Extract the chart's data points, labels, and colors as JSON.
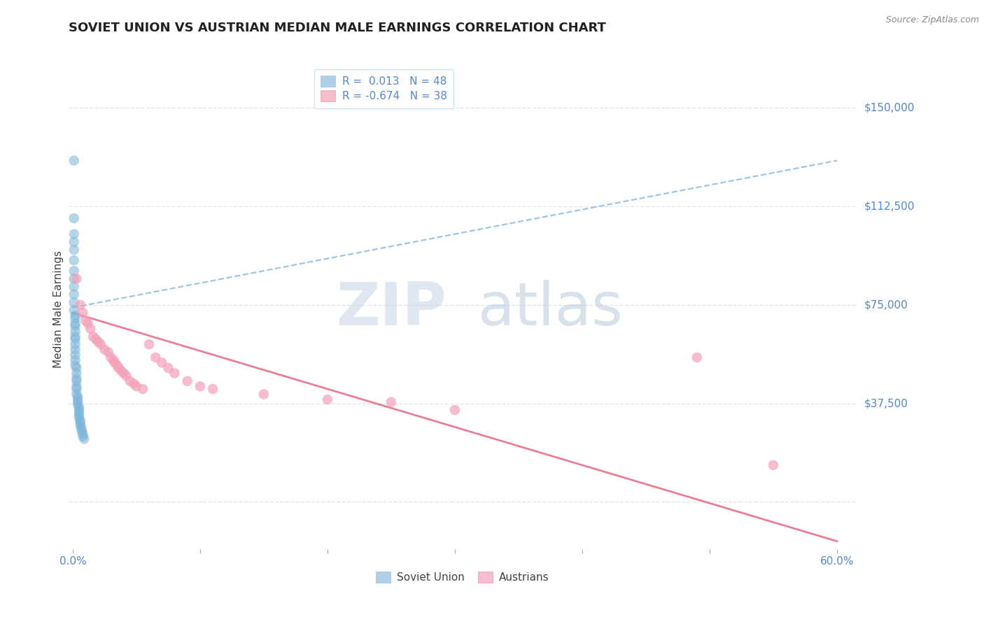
{
  "title": "SOVIET UNION VS AUSTRIAN MEDIAN MALE EARNINGS CORRELATION CHART",
  "source": "Source: ZipAtlas.com",
  "ylabel": "Median Male Earnings",
  "xlim": [
    -0.003,
    0.615
  ],
  "ylim": [
    -18000,
    165000
  ],
  "ytick_vals": [
    0,
    37500,
    75000,
    112500,
    150000
  ],
  "ytick_labels": [
    "",
    "$37,500",
    "$75,000",
    "$112,500",
    "$150,000"
  ],
  "xtick_vals": [
    0.0,
    0.1,
    0.2,
    0.3,
    0.4,
    0.5,
    0.6
  ],
  "xtick_labels": [
    "0.0%",
    "",
    "",
    "",
    "",
    "",
    "60.0%"
  ],
  "watermark_text": "ZIPatlas",
  "soviet_color": "#7ab3d8",
  "austrian_color": "#f4a0b8",
  "soviet_trend_color": "#90bbdd",
  "austrian_trend_color": "#e8708a",
  "grid_color": "#dde8f0",
  "bg_color": "#ffffff",
  "label_color": "#5588cc",
  "title_color": "#222222",
  "source_color": "#888888",
  "legend_r_label_soviet": "R =  0.013   N = 48",
  "legend_r_label_austrian": "R = -0.674   N = 38",
  "legend_name_soviet": "Soviet Union",
  "legend_name_austrian": "Austrians",
  "soviet_union_x": [
    0.001,
    0.001,
    0.001,
    0.001,
    0.001,
    0.001,
    0.001,
    0.001,
    0.001,
    0.001,
    0.001,
    0.001,
    0.002,
    0.002,
    0.002,
    0.002,
    0.002,
    0.002,
    0.002,
    0.002,
    0.002,
    0.002,
    0.002,
    0.002,
    0.003,
    0.003,
    0.003,
    0.003,
    0.003,
    0.003,
    0.003,
    0.004,
    0.004,
    0.004,
    0.004,
    0.005,
    0.005,
    0.005,
    0.005,
    0.005,
    0.006,
    0.006,
    0.006,
    0.007,
    0.007,
    0.008,
    0.008,
    0.009
  ],
  "soviet_union_y": [
    130000,
    108000,
    102000,
    99000,
    96000,
    92000,
    88000,
    85000,
    82000,
    79000,
    76000,
    73000,
    71000,
    70000,
    68000,
    67000,
    65000,
    63000,
    62000,
    60000,
    58000,
    56000,
    54000,
    52000,
    51000,
    49000,
    47000,
    46000,
    44000,
    43000,
    41000,
    40000,
    39000,
    38000,
    37000,
    36000,
    35000,
    34000,
    33000,
    32000,
    31000,
    30000,
    29000,
    28000,
    27000,
    26000,
    25000,
    24000
  ],
  "austrian_x": [
    0.003,
    0.006,
    0.008,
    0.01,
    0.012,
    0.014,
    0.016,
    0.018,
    0.02,
    0.022,
    0.025,
    0.028,
    0.03,
    0.032,
    0.033,
    0.035,
    0.036,
    0.038,
    0.04,
    0.042,
    0.045,
    0.048,
    0.05,
    0.055,
    0.06,
    0.065,
    0.07,
    0.075,
    0.08,
    0.09,
    0.1,
    0.11,
    0.15,
    0.2,
    0.25,
    0.3,
    0.49,
    0.55
  ],
  "austrian_y": [
    85000,
    75000,
    72000,
    69000,
    68000,
    66000,
    63000,
    62000,
    61000,
    60000,
    58000,
    57000,
    55000,
    54000,
    53000,
    52000,
    51000,
    50000,
    49000,
    48000,
    46000,
    45000,
    44000,
    43000,
    60000,
    55000,
    53000,
    51000,
    49000,
    46000,
    44000,
    43000,
    41000,
    39000,
    38000,
    35000,
    55000,
    14000
  ],
  "soviet_trend_x": [
    0.0,
    0.6
  ],
  "soviet_trend_y": [
    74000,
    130000
  ],
  "austrian_trend_x": [
    0.0,
    0.6
  ],
  "austrian_trend_y": [
    72000,
    -15000
  ],
  "title_fontsize": 13,
  "axis_label_fontsize": 11,
  "tick_fontsize": 11,
  "legend_fontsize": 11
}
